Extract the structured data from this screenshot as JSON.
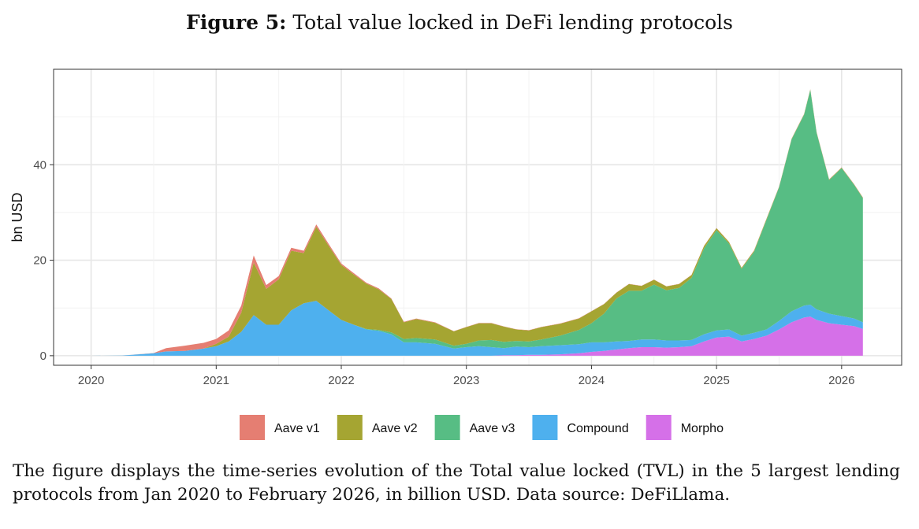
{
  "figure": {
    "title_prefix": "Figure 5:",
    "title_text": "Total value locked in DeFi lending protocols",
    "caption": "The figure displays the time-series evolution of the Total value locked (TVL) in the 5 largest lending protocols from Jan 2020 to February 2026, in billion USD. Data source: DeFiLlama."
  },
  "chart_data": {
    "type": "area",
    "stacked": true,
    "title": "",
    "xlabel": "",
    "ylabel": "bn USD",
    "x_ticks": [
      "2020",
      "2021",
      "2022",
      "2023",
      "2024",
      "2025",
      "2026"
    ],
    "y_ticks": [
      0,
      20,
      40
    ],
    "xlim": [
      2019.7,
      2026.48
    ],
    "ylim": [
      -2,
      60
    ],
    "grid": true,
    "legend_position": "bottom",
    "x": [
      2020.0,
      2020.25,
      2020.5,
      2020.6,
      2020.75,
      2020.9,
      2021.0,
      2021.1,
      2021.2,
      2021.3,
      2021.4,
      2021.5,
      2021.6,
      2021.7,
      2021.8,
      2021.9,
      2022.0,
      2022.1,
      2022.2,
      2022.3,
      2022.4,
      2022.5,
      2022.6,
      2022.75,
      2022.9,
      2023.0,
      2023.1,
      2023.2,
      2023.3,
      2023.4,
      2023.5,
      2023.6,
      2023.75,
      2023.9,
      2024.0,
      2024.1,
      2024.2,
      2024.3,
      2024.4,
      2024.5,
      2024.6,
      2024.7,
      2024.8,
      2024.9,
      2025.0,
      2025.1,
      2025.2,
      2025.3,
      2025.4,
      2025.5,
      2025.6,
      2025.7,
      2025.75,
      2025.8,
      2025.9,
      2026.0,
      2026.1,
      2026.17
    ],
    "series": [
      {
        "name": "Morpho",
        "color": "#D570E8",
        "values": [
          0,
          0,
          0,
          0,
          0,
          0,
          0,
          0,
          0,
          0,
          0,
          0,
          0,
          0,
          0,
          0,
          0,
          0,
          0,
          0,
          0,
          0,
          0,
          0,
          0,
          0,
          0,
          0,
          0.1,
          0.1,
          0.2,
          0.2,
          0.3,
          0.5,
          0.8,
          1.0,
          1.3,
          1.6,
          1.8,
          1.8,
          1.7,
          1.8,
          2.0,
          3.0,
          3.8,
          4.0,
          3.0,
          3.5,
          4.2,
          5.5,
          7.0,
          8.0,
          8.2,
          7.5,
          6.8,
          6.5,
          6.2,
          5.6
        ]
      },
      {
        "name": "Compound",
        "color": "#4EB0EE",
        "values": [
          0,
          0.05,
          0.5,
          0.9,
          1.0,
          1.5,
          2.0,
          3.0,
          5.0,
          8.5,
          6.5,
          6.5,
          9.5,
          11.0,
          11.5,
          9.5,
          7.5,
          6.5,
          5.5,
          5.2,
          4.5,
          2.8,
          2.8,
          2.5,
          1.5,
          1.8,
          2.0,
          1.8,
          1.5,
          1.8,
          1.6,
          1.8,
          1.9,
          1.9,
          2.0,
          1.8,
          1.7,
          1.5,
          1.6,
          1.6,
          1.5,
          1.4,
          1.3,
          1.5,
          1.5,
          1.5,
          1.2,
          1.3,
          1.3,
          1.8,
          2.3,
          2.5,
          2.5,
          2.2,
          2.0,
          1.8,
          1.6,
          1.4
        ]
      },
      {
        "name": "Aave v3",
        "color": "#57BD84",
        "values": [
          0,
          0,
          0,
          0,
          0,
          0,
          0,
          0,
          0,
          0,
          0,
          0,
          0,
          0,
          0,
          0,
          0,
          0,
          0.1,
          0.2,
          0.4,
          0.7,
          0.9,
          0.9,
          0.6,
          0.7,
          1.2,
          1.5,
          1.3,
          1.2,
          1.2,
          1.4,
          2.0,
          3.0,
          4.0,
          6.0,
          9.0,
          10.5,
          10.2,
          11.5,
          10.5,
          11.0,
          13.0,
          18.0,
          21.0,
          18.0,
          14.0,
          17.0,
          23.0,
          28.0,
          36.0,
          40.0,
          45.0,
          37.0,
          28.0,
          31.0,
          28.0,
          26.0
        ]
      },
      {
        "name": "Aave v2",
        "color": "#A5A532",
        "values": [
          0,
          0,
          0,
          0,
          0,
          0,
          0.5,
          1.0,
          4.0,
          11.0,
          7.5,
          9.5,
          12.5,
          10.5,
          15.5,
          13.5,
          11.5,
          10.5,
          9.5,
          8.5,
          7.0,
          3.5,
          4.0,
          3.5,
          3.0,
          3.5,
          3.6,
          3.5,
          3.2,
          2.4,
          2.3,
          2.6,
          2.5,
          2.4,
          2.5,
          2.0,
          1.2,
          1.4,
          1.0,
          1.0,
          0.8,
          0.8,
          0.6,
          0.5,
          0.4,
          0.3,
          0.2,
          0.2,
          0.2,
          0.1,
          0.1,
          0.1,
          0.1,
          0.1,
          0.1,
          0.1,
          0.1,
          0.1
        ]
      },
      {
        "name": "Aave v1",
        "color": "#E57E72",
        "values": [
          0,
          0,
          0.05,
          0.7,
          1.1,
          1.2,
          1.0,
          1.3,
          1.5,
          1.5,
          0.8,
          0.7,
          0.6,
          0.5,
          0.5,
          0.4,
          0.3,
          0.3,
          0.2,
          0.2,
          0.1,
          0.1,
          0.1,
          0.1,
          0.05,
          0.05,
          0.05,
          0.05,
          0.05,
          0.05,
          0.05,
          0.05,
          0.05,
          0.05,
          0.05,
          0.05,
          0.05,
          0.05,
          0.05,
          0.05,
          0.05,
          0.05,
          0.05,
          0.05,
          0.05,
          0.05,
          0.05,
          0.05,
          0.05,
          0.05,
          0.05,
          0.05,
          0.05,
          0.05,
          0.05,
          0.05,
          0.05,
          0.05
        ]
      }
    ],
    "legend_order": [
      "Aave v1",
      "Aave v2",
      "Aave v3",
      "Compound",
      "Morpho"
    ]
  }
}
